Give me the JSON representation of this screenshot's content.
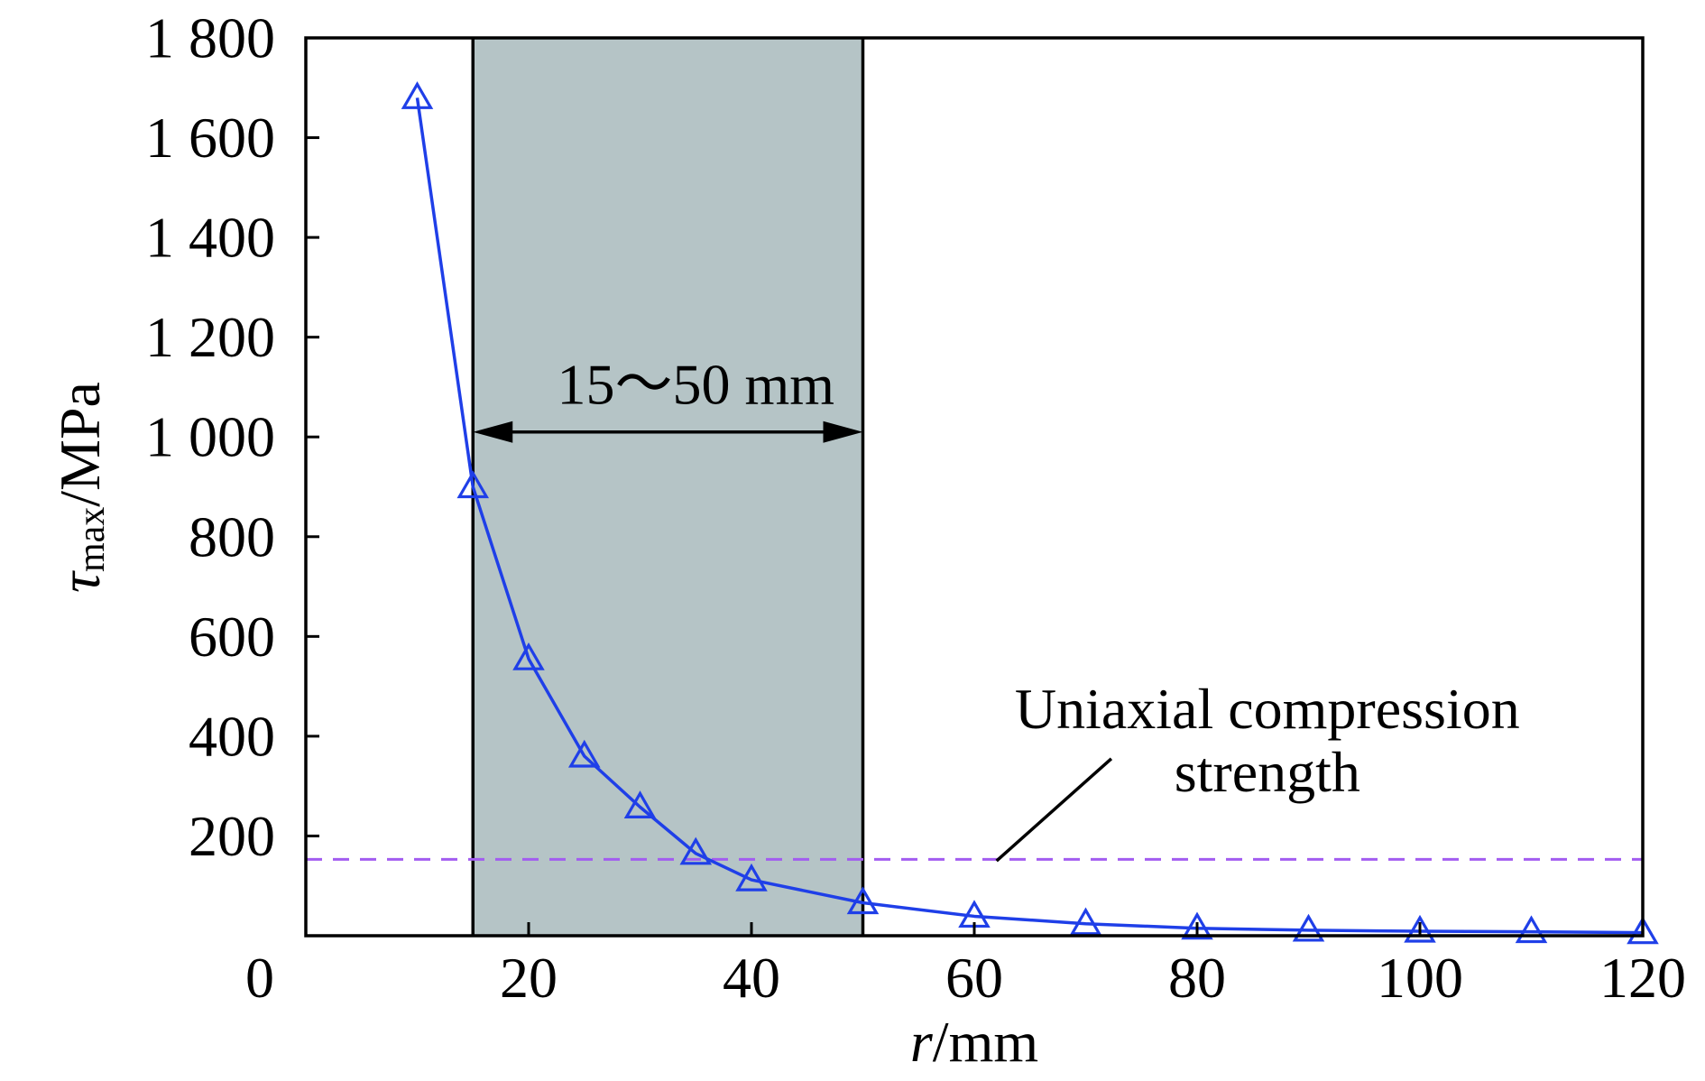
{
  "chart_data": {
    "type": "line",
    "x": [
      10,
      15,
      20,
      25,
      30,
      35,
      40,
      50,
      60,
      70,
      80,
      90,
      100,
      110,
      120
    ],
    "series": [
      {
        "values": [
          1680,
          900,
          555,
          360,
          258,
          165,
          112,
          66,
          39,
          24,
          15,
          11,
          9,
          8,
          6
        ],
        "color": "#1f3fe8",
        "marker": "open-triangle",
        "line_style": "solid"
      }
    ],
    "xlabel": {
      "var": "r",
      "unit": "/mm"
    },
    "ylabel": {
      "var": "τ",
      "sub": "max",
      "unit": "/MPa"
    },
    "xlim": [
      0,
      120
    ],
    "ylim": [
      0,
      1800
    ],
    "xticks": [
      20,
      40,
      60,
      80,
      100,
      120
    ],
    "xtick_labels": [
      "20",
      "40",
      "60",
      "80",
      "100",
      "120"
    ],
    "yticks": [
      200,
      400,
      600,
      800,
      1000,
      1200,
      1400,
      1600,
      1800
    ],
    "ytick_labels": [
      "200",
      "400",
      "600",
      "800",
      "1 000",
      "1 200",
      "1 400",
      "1 600",
      "1 800"
    ],
    "origin_label": "0",
    "shaded_region": {
      "x": [
        15,
        50
      ],
      "color": "#b5c4c6",
      "label": "15～50 mm"
    },
    "reference_line": {
      "y": 153,
      "color": "#a25cf0",
      "style": "dashed",
      "label_lines": [
        "Uniaxial compression",
        "strength"
      ]
    },
    "grid": false,
    "legend": "none"
  }
}
